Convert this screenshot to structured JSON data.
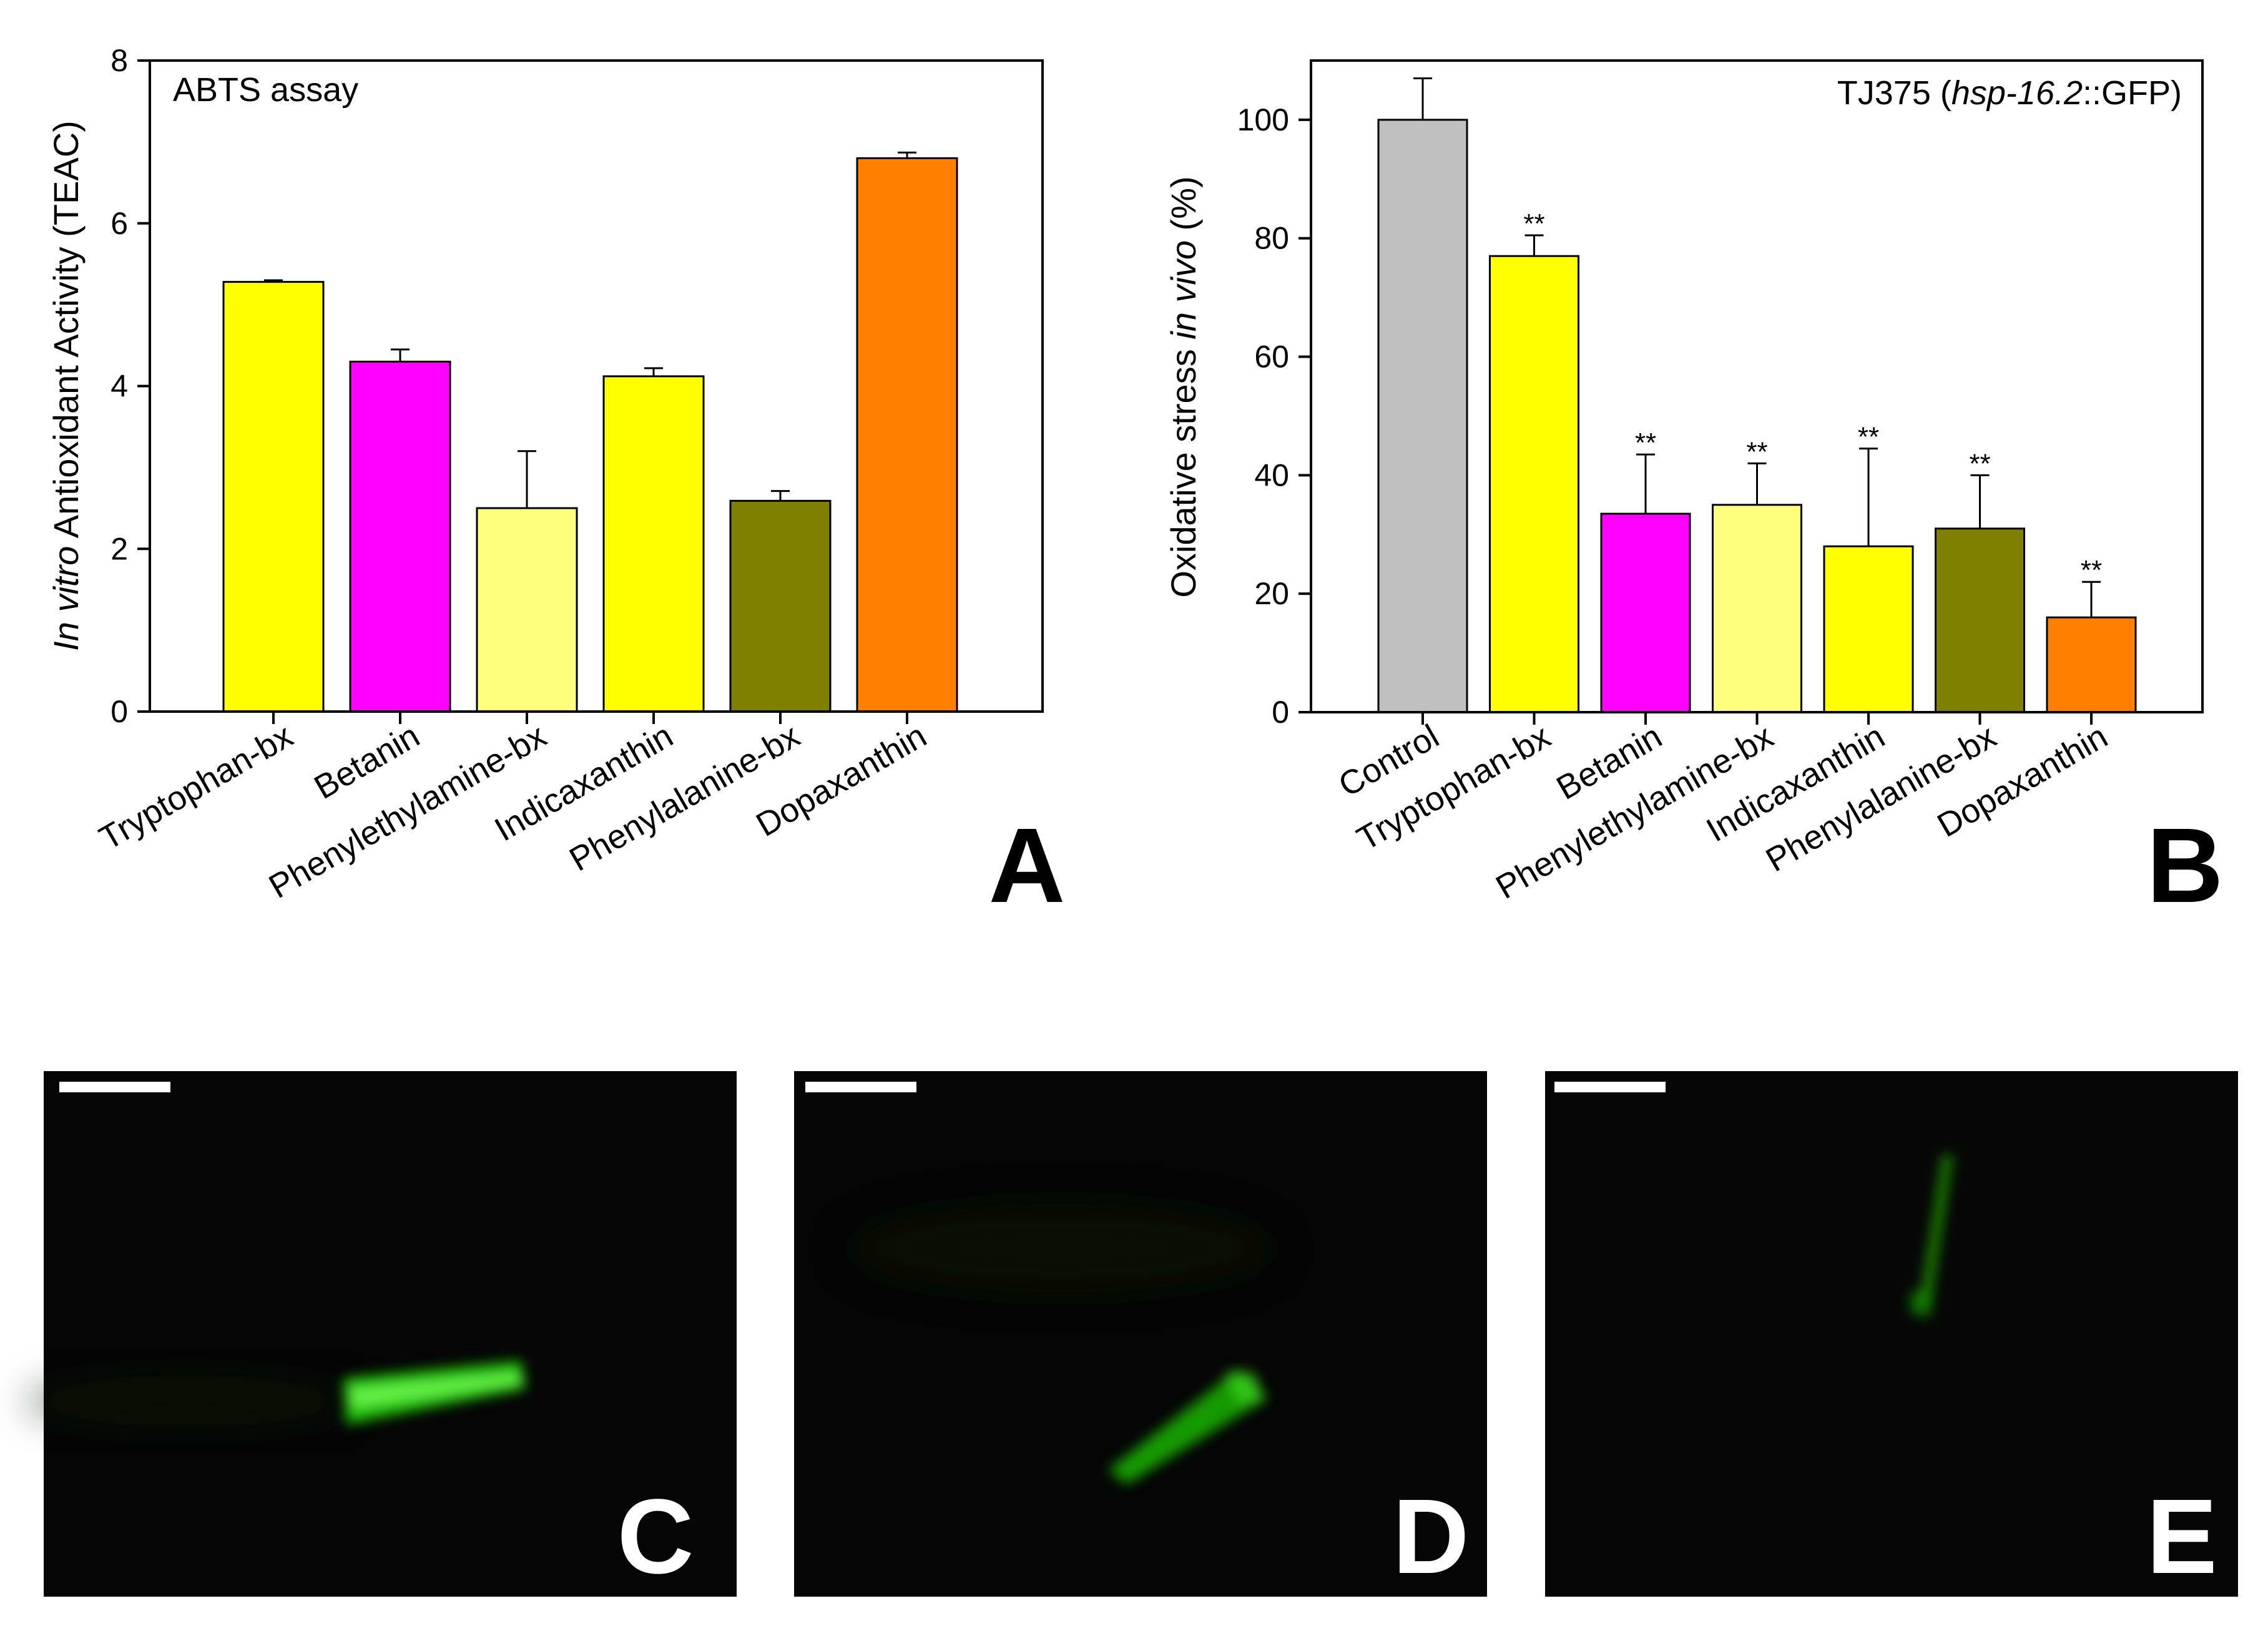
{
  "chart_data": [
    {
      "type": "bar",
      "panel": "A",
      "annotation": "ABTS assay",
      "ylabel_italic": "In vitro",
      "ylabel_rest": " Antioxidant Activity (TEAC)",
      "ylim": [
        0,
        8
      ],
      "yticks": [
        "0",
        "2",
        "4",
        "6",
        "8"
      ],
      "categories": [
        "Tryptophan-bx",
        "Betanin",
        "Phenylethylamine-bx",
        "Indicaxanthin",
        "Phenylalanine-bx",
        "Dopaxanthin"
      ],
      "values": [
        5.28,
        4.3,
        2.5,
        4.12,
        2.59,
        6.8
      ],
      "errors": [
        0.02,
        0.15,
        0.7,
        0.1,
        0.12,
        0.07
      ],
      "colors": [
        "#ffff00",
        "#ff00ff",
        "#ffff80",
        "#ffff00",
        "#808000",
        "#ff8000"
      ]
    },
    {
      "type": "bar",
      "panel": "B",
      "annotation_pre": "TJ375 (",
      "annotation_italic": "hsp-16.2",
      "annotation_post": "::GFP)",
      "ylabel_pre": "Oxidative stress ",
      "ylabel_italic": "in vivo",
      "ylabel_post": " (%)",
      "ylim": [
        0,
        110
      ],
      "yticks": [
        "0",
        "20",
        "40",
        "60",
        "80",
        "100"
      ],
      "categories": [
        "Control",
        "Tryptophan-bx",
        "Betanin",
        "Phenylethylamine-bx",
        "Indicaxanthin",
        "Phenylalanine-bx",
        "Dopaxanthin"
      ],
      "values": [
        100,
        77,
        33.5,
        35,
        28,
        31,
        16
      ],
      "errors": [
        7,
        3.5,
        10,
        7,
        16.5,
        9,
        6
      ],
      "significance": [
        "",
        "**",
        "**",
        "**",
        "**",
        "**",
        "**"
      ],
      "colors": [
        "#c0c0c0",
        "#ffff00",
        "#ff00ff",
        "#ffff80",
        "#ffff00",
        "#808000",
        "#ff8000"
      ]
    }
  ],
  "micrographs": [
    {
      "label": "C"
    },
    {
      "label": "D"
    },
    {
      "label": "E"
    }
  ],
  "panel_labels": {
    "a": "A",
    "b": "B"
  }
}
